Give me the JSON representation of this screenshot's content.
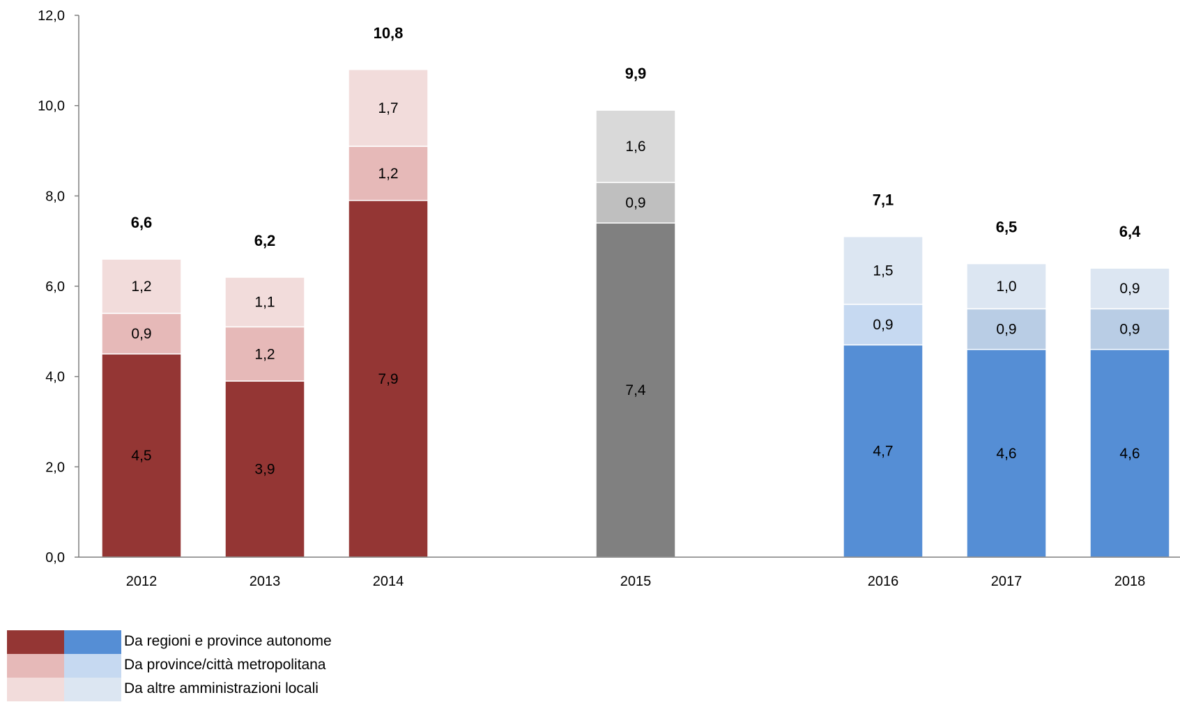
{
  "chart_data": {
    "type": "bar",
    "stacked": true,
    "categories": [
      "2012",
      "2013",
      "2014",
      "2015",
      "2016",
      "2017",
      "2018"
    ],
    "series": [
      {
        "name": "Da regioni e province autonome",
        "values": [
          4.5,
          3.9,
          7.9,
          7.4,
          4.7,
          4.6,
          4.6
        ]
      },
      {
        "name": "Da province/città metropolitana",
        "values": [
          0.9,
          1.2,
          1.2,
          0.9,
          0.9,
          0.9,
          0.9
        ]
      },
      {
        "name": "Da altre amministrazioni locali",
        "values": [
          1.2,
          1.1,
          1.7,
          1.6,
          1.5,
          1.0,
          0.9
        ]
      }
    ],
    "value_labels": [
      [
        "4,5",
        "3,9",
        "7,9",
        "7,4",
        "4,7",
        "4,6",
        "4,6"
      ],
      [
        "0,9",
        "1,2",
        "1,2",
        "0,9",
        "0,9",
        "0,9",
        "0,9"
      ],
      [
        "1,2",
        "1,1",
        "1,7",
        "1,6",
        "1,5",
        "1,0",
        "0,9"
      ]
    ],
    "totals": [
      6.6,
      6.2,
      10.8,
      9.9,
      7.1,
      6.5,
      6.4
    ],
    "total_labels": [
      "6,6",
      "6,2",
      "10,8",
      "9,9",
      "7,1",
      "6,5",
      "6,4"
    ],
    "y_ticks": [
      "0,0",
      "2,0",
      "4,0",
      "6,0",
      "8,0",
      "10,0",
      "12,0"
    ],
    "ylim": [
      0,
      12
    ],
    "grid": false,
    "legend_position": "bottom-left",
    "colors": {
      "red": [
        "#943634",
        "#e6b9b8",
        "#f2dcdb"
      ],
      "gray": [
        "#808080",
        "#bfbfbf",
        "#d9d9d9"
      ],
      "blue": [
        "#558ed5",
        "#c6d9f1",
        "#dce6f2"
      ],
      "blue_2017_2018_mid": "#b9cde5"
    },
    "category_palette": [
      "red",
      "red",
      "red",
      "gray",
      "blue",
      "blue",
      "blue"
    ]
  },
  "legend": {
    "items": [
      {
        "label": "Da regioni e province autonome",
        "swatch_a": "#943634",
        "swatch_b": "#558ed5"
      },
      {
        "label": "Da province/città metropolitana",
        "swatch_a": "#e6b9b8",
        "swatch_b": "#c6d9f1"
      },
      {
        "label": "Da altre amministrazioni locali",
        "swatch_a": "#f2dcdb",
        "swatch_b": "#dce6f2"
      }
    ]
  }
}
